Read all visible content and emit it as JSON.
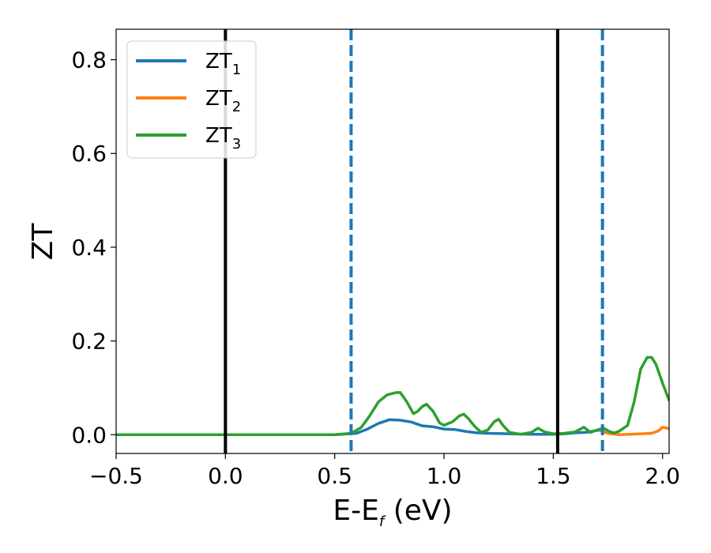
{
  "chart_data": {
    "type": "line",
    "title": "",
    "xlabel": {
      "main": "E-E",
      "sub": "f",
      "suffix": " (eV)"
    },
    "ylabel": "ZT",
    "xlim": [
      -0.5,
      2.03
    ],
    "ylim": [
      -0.04,
      0.865
    ],
    "x_ticks": [
      -0.5,
      0.0,
      0.5,
      1.0,
      1.5,
      2.0
    ],
    "x_tick_labels": [
      "−0.5",
      "0.0",
      "0.5",
      "1.0",
      "1.5",
      "2.0"
    ],
    "y_ticks": [
      0.0,
      0.2,
      0.4,
      0.6,
      0.8
    ],
    "y_tick_labels": [
      "0.0",
      "0.2",
      "0.4",
      "0.6",
      "0.8"
    ],
    "grid": false,
    "legend_position": "top-left",
    "vertical_lines": [
      {
        "x": 0.0,
        "style": "solid",
        "color": "#000000"
      },
      {
        "x": 1.52,
        "style": "solid",
        "color": "#000000"
      },
      {
        "x": 0.575,
        "style": "dashed",
        "color": "#1f77b4"
      },
      {
        "x": 1.725,
        "style": "dashed",
        "color": "#1f77b4"
      }
    ],
    "series": [
      {
        "name": "ZT",
        "sub": "1",
        "color": "#1f77b4",
        "x": [
          -0.5,
          0.0,
          0.5,
          0.6,
          0.65,
          0.7,
          0.75,
          0.8,
          0.85,
          0.9,
          0.95,
          1.0,
          1.05,
          1.1,
          1.15,
          1.2,
          1.3,
          1.4,
          1.5,
          1.55,
          1.6,
          1.65,
          1.7,
          1.72
        ],
        "y": [
          0.0,
          0.0,
          0.0,
          0.003,
          0.012,
          0.024,
          0.032,
          0.031,
          0.027,
          0.019,
          0.017,
          0.012,
          0.011,
          0.007,
          0.004,
          0.003,
          0.002,
          0.001,
          0.001,
          0.002,
          0.004,
          0.005,
          0.009,
          0.01
        ]
      },
      {
        "name": "ZT",
        "sub": "2",
        "color": "#ff7f0e",
        "x": [
          1.72,
          1.75,
          1.8,
          1.85,
          1.9,
          1.95,
          1.98,
          2.0,
          2.03
        ],
        "y": [
          0.008,
          0.003,
          0.0,
          0.001,
          0.002,
          0.003,
          0.008,
          0.016,
          0.013
        ]
      },
      {
        "name": "ZT",
        "sub": "3",
        "color": "#2ca02c",
        "x": [
          -0.5,
          0.0,
          0.5,
          0.575,
          0.62,
          0.66,
          0.7,
          0.74,
          0.78,
          0.8,
          0.83,
          0.86,
          0.88,
          0.9,
          0.92,
          0.95,
          0.98,
          1.0,
          1.04,
          1.07,
          1.09,
          1.11,
          1.14,
          1.17,
          1.2,
          1.23,
          1.25,
          1.27,
          1.3,
          1.35,
          1.4,
          1.43,
          1.46,
          1.5,
          1.55,
          1.6,
          1.64,
          1.67,
          1.7,
          1.73,
          1.76,
          1.78,
          1.8,
          1.84,
          1.87,
          1.9,
          1.93,
          1.95,
          1.97,
          2.0,
          2.03
        ],
        "y": [
          0.0,
          0.0,
          0.0,
          0.003,
          0.015,
          0.04,
          0.07,
          0.085,
          0.09,
          0.09,
          0.07,
          0.045,
          0.05,
          0.06,
          0.065,
          0.05,
          0.025,
          0.02,
          0.028,
          0.04,
          0.044,
          0.035,
          0.018,
          0.005,
          0.01,
          0.028,
          0.033,
          0.02,
          0.005,
          0.001,
          0.005,
          0.014,
          0.006,
          0.002,
          0.003,
          0.006,
          0.016,
          0.005,
          0.01,
          0.014,
          0.006,
          0.004,
          0.007,
          0.02,
          0.07,
          0.14,
          0.165,
          0.165,
          0.15,
          0.11,
          0.073
        ]
      }
    ]
  }
}
